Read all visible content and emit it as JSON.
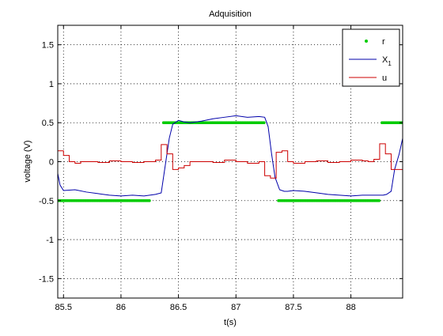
{
  "chart_data": {
    "type": "line",
    "title": "Adquisition",
    "xlabel": "t(s)",
    "ylabel": "voltage (V)",
    "xlim": [
      85.45,
      88.45
    ],
    "ylim": [
      -1.75,
      1.75
    ],
    "xticks": [
      85.5,
      86,
      86.5,
      87,
      87.5,
      88
    ],
    "xtick_labels": [
      "85.5",
      "86",
      "86.5",
      "87",
      "87.5",
      "88"
    ],
    "yticks": [
      -1.5,
      -1,
      -0.5,
      0,
      0.5,
      1,
      1.5
    ],
    "ytick_labels": [
      "-1.5",
      "-1",
      "-0.5",
      "0",
      "0.5",
      "1",
      "1.5"
    ],
    "grid": true,
    "legend_position": "top-right",
    "series": [
      {
        "name": "r",
        "type": "scatter",
        "color": "#00cc00",
        "segments": [
          {
            "x0": 85.46,
            "x1": 86.25,
            "y": -0.5
          },
          {
            "x0": 86.37,
            "x1": 87.25,
            "y": 0.5
          },
          {
            "x0": 87.37,
            "x1": 88.25,
            "y": -0.5
          },
          {
            "x0": 88.27,
            "x1": 88.45,
            "y": 0.5
          }
        ]
      },
      {
        "name": "X1",
        "type": "line",
        "color": "#0000aa",
        "x": [
          85.45,
          85.47,
          85.5,
          85.6,
          85.7,
          85.8,
          85.9,
          86.0,
          86.1,
          86.2,
          86.25,
          86.3,
          86.35,
          86.38,
          86.42,
          86.45,
          86.5,
          86.55,
          86.6,
          86.7,
          86.8,
          86.9,
          87.0,
          87.1,
          87.2,
          87.25,
          87.28,
          87.31,
          87.34,
          87.38,
          87.42,
          87.45,
          87.5,
          87.6,
          87.7,
          87.8,
          87.9,
          88.0,
          88.1,
          88.15,
          88.2,
          88.25,
          88.28,
          88.31,
          88.35,
          88.38,
          88.42,
          88.45
        ],
        "y": [
          -0.15,
          -0.3,
          -0.37,
          -0.36,
          -0.39,
          -0.41,
          -0.43,
          -0.44,
          -0.43,
          -0.44,
          -0.43,
          -0.42,
          -0.4,
          -0.1,
          0.3,
          0.48,
          0.53,
          0.51,
          0.5,
          0.52,
          0.55,
          0.57,
          0.59,
          0.57,
          0.58,
          0.57,
          0.45,
          0.1,
          -0.2,
          -0.36,
          -0.38,
          -0.38,
          -0.37,
          -0.38,
          -0.4,
          -0.42,
          -0.43,
          -0.44,
          -0.43,
          -0.43,
          -0.43,
          -0.43,
          -0.43,
          -0.42,
          -0.38,
          -0.1,
          0.1,
          0.3
        ]
      },
      {
        "name": "u",
        "type": "step",
        "color": "#cc0000",
        "x": [
          85.45,
          85.5,
          85.55,
          85.6,
          85.65,
          85.8,
          85.9,
          86.0,
          86.1,
          86.2,
          86.3,
          86.35,
          86.4,
          86.45,
          86.5,
          86.55,
          86.6,
          86.8,
          86.9,
          87.0,
          87.1,
          87.2,
          87.25,
          87.3,
          87.35,
          87.4,
          87.45,
          87.5,
          87.6,
          87.7,
          87.8,
          87.9,
          88.0,
          88.1,
          88.15,
          88.2,
          88.25,
          88.3,
          88.35,
          88.45
        ],
        "y": [
          0.14,
          0.08,
          0.0,
          -0.02,
          0.0,
          -0.01,
          0.01,
          0.0,
          -0.01,
          0.0,
          0.02,
          0.22,
          0.1,
          -0.1,
          -0.08,
          -0.05,
          0.0,
          -0.01,
          0.02,
          0.0,
          -0.02,
          0.0,
          -0.18,
          -0.21,
          0.12,
          0.14,
          0.0,
          -0.02,
          0.0,
          0.01,
          -0.01,
          0.0,
          0.02,
          0.01,
          0.0,
          0.03,
          0.23,
          0.1,
          -0.1,
          -0.1
        ]
      }
    ]
  }
}
